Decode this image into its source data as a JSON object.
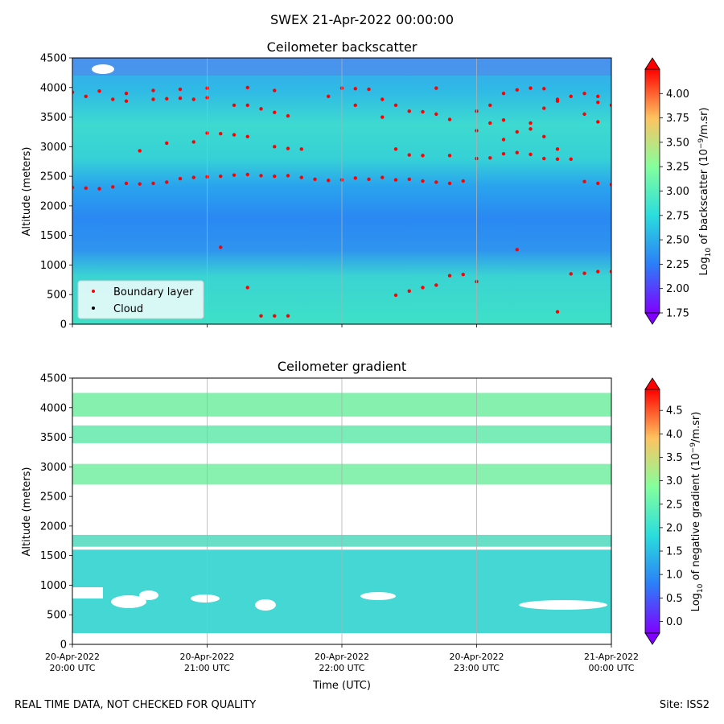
{
  "figure": {
    "suptitle": "SWEX 21-Apr-2022 00:00:00",
    "footer_left": "REAL TIME DATA, NOT CHECKED FOR QUALITY",
    "footer_right": "Site: ISS2"
  },
  "chart_data": [
    {
      "type": "heatmap",
      "title": "Ceilometer backscatter",
      "xlabel": "",
      "ylabel": "Altitude (meters)",
      "ylim": [
        0,
        4500
      ],
      "yticks": [
        "0",
        "500",
        "1000",
        "1500",
        "2000",
        "2500",
        "3000",
        "3500",
        "4000",
        "4500"
      ],
      "xticks": [],
      "colorbar": {
        "label": "Log10 of backscatter (10⁻⁹/m.sr)",
        "range": [
          1.75,
          4.25
        ],
        "ticks": [
          "1.75",
          "2.00",
          "2.25",
          "2.50",
          "2.75",
          "3.00",
          "3.25",
          "3.50",
          "3.75",
          "4.00"
        ]
      },
      "legend": {
        "position": "lower-left",
        "entries": [
          {
            "label": "Boundary layer",
            "color": "#ff0000"
          },
          {
            "label": "Cloud",
            "color": "#000000"
          }
        ]
      },
      "series": [
        {
          "name": "Boundary layer",
          "x_hours": [
            0.0,
            0.1,
            0.2,
            0.3,
            0.4,
            0.5,
            0.6,
            0.7,
            0.8,
            0.9,
            1.0,
            1.1,
            1.2,
            1.3,
            1.4,
            1.5,
            1.6,
            1.7,
            1.8,
            1.9,
            2.0,
            2.1,
            2.2,
            2.3,
            2.4,
            2.5,
            2.6,
            2.7,
            2.8,
            2.9,
            3.0,
            3.1,
            3.2,
            3.3,
            3.4,
            3.5,
            3.6,
            3.7,
            3.8,
            3.9,
            4.0,
            0.0,
            0.1,
            0.3,
            0.4,
            0.6,
            0.7,
            0.8,
            0.9,
            1.0,
            1.2,
            1.3,
            1.4,
            1.5,
            1.6,
            2.0,
            2.1,
            2.2,
            2.3,
            2.4,
            2.5,
            2.6,
            2.7,
            3.0,
            3.1,
            3.2,
            3.3,
            3.4,
            3.5,
            3.6,
            3.7,
            3.8,
            3.9,
            4.0,
            0.5,
            0.7,
            0.9,
            1.0,
            1.1,
            1.2,
            1.3,
            1.5,
            1.6,
            1.7,
            2.4,
            2.5,
            2.6,
            2.8,
            3.0,
            3.1,
            3.2,
            3.4,
            3.5,
            3.6,
            3.9,
            0.2,
            0.4,
            0.6,
            0.8,
            1.0,
            1.3,
            1.5,
            1.9,
            2.1,
            2.3,
            2.7,
            2.8,
            3.2,
            3.3,
            3.4,
            3.5,
            3.6,
            3.8,
            3.9,
            1.1,
            1.3,
            1.4,
            1.5,
            1.6,
            2.4,
            2.5,
            2.6,
            2.7,
            2.8,
            2.9,
            3.0,
            3.3,
            3.6,
            3.7,
            3.8,
            3.9,
            4.0
          ],
          "y_m": [
            2310,
            2300,
            2290,
            2320,
            2380,
            2370,
            2380,
            2400,
            2460,
            2480,
            2490,
            2500,
            2520,
            2530,
            2510,
            2500,
            2510,
            2480,
            2450,
            2430,
            2440,
            2470,
            2450,
            2480,
            2440,
            2450,
            2420,
            2400,
            2380,
            2420,
            2800,
            2810,
            2880,
            2900,
            2870,
            2800,
            2790,
            2790,
            2410,
            2380,
            2360,
            3920,
            3850,
            3800,
            3770,
            3800,
            3810,
            3820,
            3800,
            3830,
            3700,
            3700,
            3640,
            3580,
            3520,
            3990,
            3980,
            3970,
            3800,
            3700,
            3600,
            3590,
            3990,
            3600,
            3700,
            3900,
            3960,
            3990,
            3980,
            3800,
            3850,
            3900,
            3750,
            3700,
            2930,
            3060,
            3080,
            3230,
            3220,
            3200,
            3170,
            3000,
            2970,
            2960,
            2960,
            2860,
            2850,
            2850,
            3270,
            3400,
            3450,
            3300,
            3170,
            2960,
            3420,
            3940,
            3900,
            3950,
            3970,
            3990,
            4000,
            3950,
            3850,
            3700,
            3500,
            3550,
            3460,
            3120,
            3250,
            3400,
            3650,
            3770,
            3550,
            3850,
            1300,
            620,
            140,
            140,
            140,
            490,
            560,
            620,
            660,
            820,
            840,
            720,
            1260,
            210,
            850,
            860,
            890,
            890
          ],
          "color": "#ff0000"
        }
      ]
    },
    {
      "type": "heatmap",
      "title": "Ceilometer gradient",
      "xlabel": "Time (UTC)",
      "ylabel": "Altitude (meters)",
      "ylim": [
        0,
        4500
      ],
      "yticks": [
        "0",
        "500",
        "1000",
        "1500",
        "2000",
        "2500",
        "3000",
        "3500",
        "4000",
        "4500"
      ],
      "xticks": [
        {
          "line1": "20-Apr-2022",
          "line2": "20:00 UTC",
          "hours": 0
        },
        {
          "line1": "20-Apr-2022",
          "line2": "21:00 UTC",
          "hours": 1
        },
        {
          "line1": "20-Apr-2022",
          "line2": "22:00 UTC",
          "hours": 2
        },
        {
          "line1": "20-Apr-2022",
          "line2": "23:00 UTC",
          "hours": 3
        },
        {
          "line1": "21-Apr-2022",
          "line2": "00:00 UTC",
          "hours": 4
        }
      ],
      "colorbar": {
        "label": "Log10 of negative gradient (10⁻⁹/m.sr)",
        "range": [
          -0.25,
          4.95
        ],
        "ticks": [
          "0.0",
          "0.5",
          "1.0",
          "1.5",
          "2.0",
          "2.5",
          "3.0",
          "3.5",
          "4.0",
          "4.5"
        ]
      },
      "bands_m": [
        {
          "bottom": 2700,
          "top": 3050
        },
        {
          "bottom": 3400,
          "top": 3700
        },
        {
          "bottom": 3850,
          "top": 4250
        },
        {
          "bottom": 100,
          "top": 1600
        },
        {
          "bottom": 1650,
          "top": 1850
        }
      ]
    }
  ]
}
